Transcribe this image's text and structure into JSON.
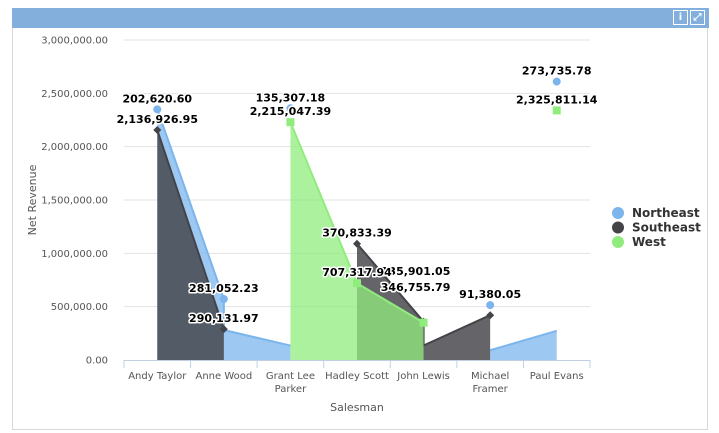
{
  "header": {
    "info_icon": "info-icon",
    "expand_icon": "expand-icon"
  },
  "chart_data": {
    "type": "area",
    "xlabel": "Salesman",
    "ylabel": "Net Revenue",
    "ylim": [
      0,
      3000000
    ],
    "yticks": [
      "0.00",
      "500,000.00",
      "1,000,000.00",
      "1,500,000.00",
      "2,000,000.00",
      "2,500,000.00",
      "3,000,000.00"
    ],
    "categories": [
      "Andy Taylor",
      "Anne Wood",
      "Grant Lee Parker",
      "Hadley Scott",
      "John Lewis",
      "Michael Framer",
      "Paul Evans"
    ],
    "grid": true,
    "legend_position": "right",
    "series": [
      {
        "name": "Northeast",
        "color": "#7cb5ec",
        "marker": "circle",
        "points": [
          [
            0,
            2350000
          ],
          [
            1,
            572000
          ],
          [
            2,
            2360000
          ],
          [
            5,
            515000
          ],
          [
            6,
            2610000
          ]
        ],
        "labels": [
          "202,620.60",
          "281,052.23",
          "135,307.18",
          "91,380.05",
          "273,735.78"
        ],
        "area": [
          [
            [
              0,
              2350000
            ],
            [
              1,
              572000
            ],
            [
              1,
              281052
            ],
            [
              2,
              135307
            ]
          ],
          [
            [
              5,
              91380
            ],
            [
              6,
              273736
            ]
          ]
        ]
      },
      {
        "name": "Southeast",
        "color": "#434348",
        "marker": "diamond",
        "points": [
          [
            0,
            2156000
          ],
          [
            1,
            290000
          ],
          [
            3,
            1090000
          ],
          [
            4,
            360000
          ],
          [
            5,
            420000
          ]
        ],
        "labels": [
          "2,136,926.95",
          "290,131.97",
          "370,833.39",
          "135,901.05",
          null
        ],
        "area": [
          [
            [
              0,
              2156000
            ],
            [
              1,
              290000
            ]
          ],
          [
            [
              3,
              1090000
            ],
            [
              4,
              360000
            ],
            [
              4,
              136000
            ],
            [
              5,
              420000
            ]
          ]
        ]
      },
      {
        "name": "West",
        "color": "#90ed7d",
        "marker": "square",
        "points": [
          [
            2,
            2230000
          ],
          [
            3,
            720000
          ],
          [
            4,
            350000
          ],
          [
            6,
            2340000
          ]
        ],
        "labels": [
          "2,215,047.39",
          "707,317.94",
          "346,755.79",
          "2,325,811.14"
        ],
        "area": [
          [
            [
              2,
              2230000
            ],
            [
              3,
              720000
            ],
            [
              4,
              350000
            ]
          ]
        ]
      }
    ]
  }
}
